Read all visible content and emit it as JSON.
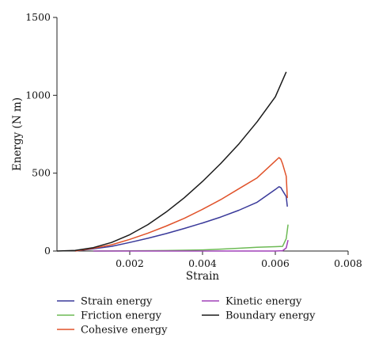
{
  "chart_data": {
    "type": "line",
    "title": "",
    "xlabel": "Strain",
    "ylabel": "Energy (N m)",
    "xlim": [
      0,
      0.008
    ],
    "ylim": [
      0,
      1500
    ],
    "x_ticks": [
      0.002,
      0.004,
      0.006,
      0.008
    ],
    "x_tick_labels": [
      "0.002",
      "0.004",
      "0.006",
      "0.008"
    ],
    "y_ticks": [
      0,
      500,
      1000,
      1500
    ],
    "y_tick_labels": [
      "0",
      "500",
      "1000",
      "1500"
    ],
    "grid": false,
    "legend_position": "bottom",
    "series": [
      {
        "name": "Strain energy",
        "color": "#3a3a9a",
        "points": [
          [
            0.0005,
            0
          ],
          [
            0.001,
            14
          ],
          [
            0.0015,
            30
          ],
          [
            0.002,
            55
          ],
          [
            0.0025,
            82
          ],
          [
            0.003,
            112
          ],
          [
            0.0035,
            145
          ],
          [
            0.004,
            180
          ],
          [
            0.0045,
            218
          ],
          [
            0.005,
            262
          ],
          [
            0.0055,
            313
          ],
          [
            0.006,
            395
          ],
          [
            0.0061,
            413
          ],
          [
            0.00615,
            408
          ],
          [
            0.0062,
            388
          ],
          [
            0.0063,
            350
          ],
          [
            0.00633,
            285
          ]
        ]
      },
      {
        "name": "Friction energy",
        "color": "#6dba55",
        "points": [
          [
            0.001,
            0
          ],
          [
            0.002,
            1
          ],
          [
            0.003,
            3
          ],
          [
            0.004,
            7
          ],
          [
            0.0045,
            12
          ],
          [
            0.005,
            18
          ],
          [
            0.0055,
            24
          ],
          [
            0.006,
            28
          ],
          [
            0.0062,
            30
          ],
          [
            0.0063,
            80
          ],
          [
            0.00635,
            170
          ]
        ]
      },
      {
        "name": "Cohesive energy",
        "color": "#e0522a",
        "points": [
          [
            0.0005,
            0
          ],
          [
            0.001,
            18
          ],
          [
            0.0015,
            40
          ],
          [
            0.002,
            75
          ],
          [
            0.0025,
            115
          ],
          [
            0.003,
            160
          ],
          [
            0.0035,
            210
          ],
          [
            0.004,
            268
          ],
          [
            0.0045,
            330
          ],
          [
            0.005,
            400
          ],
          [
            0.0055,
            470
          ],
          [
            0.006,
            578
          ],
          [
            0.0061,
            600
          ],
          [
            0.00615,
            590
          ],
          [
            0.0062,
            560
          ],
          [
            0.0063,
            480
          ],
          [
            0.00633,
            340
          ]
        ]
      },
      {
        "name": "Kinetic energy",
        "color": "#a040b8",
        "points": [
          [
            0.001,
            0
          ],
          [
            0.006,
            0
          ],
          [
            0.0062,
            2
          ],
          [
            0.0063,
            20
          ],
          [
            0.00635,
            70
          ]
        ]
      },
      {
        "name": "Boundary energy",
        "color": "#1a1a1a",
        "points": [
          [
            0,
            0
          ],
          [
            0.0005,
            4
          ],
          [
            0.001,
            22
          ],
          [
            0.0015,
            55
          ],
          [
            0.002,
            105
          ],
          [
            0.0025,
            170
          ],
          [
            0.003,
            250
          ],
          [
            0.0035,
            342
          ],
          [
            0.004,
            447
          ],
          [
            0.0045,
            562
          ],
          [
            0.005,
            688
          ],
          [
            0.0055,
            830
          ],
          [
            0.006,
            990
          ],
          [
            0.0063,
            1150
          ]
        ]
      }
    ]
  }
}
